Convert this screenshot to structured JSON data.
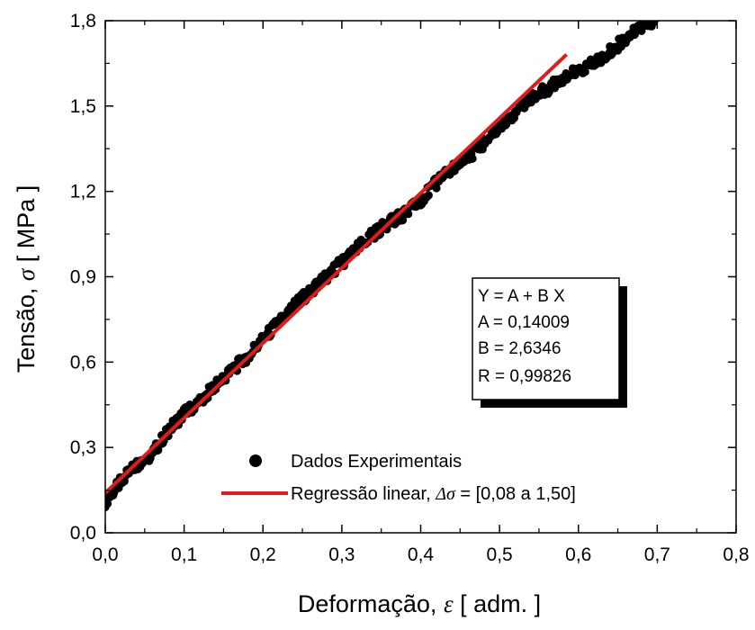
{
  "chart_data": {
    "type": "scatter",
    "xlabel_text": "Deformação, ",
    "xlabel_symbol": "ε",
    "xlabel_unit": " [ adm. ]",
    "ylabel_text": "Tensão, ",
    "ylabel_symbol": "σ",
    "ylabel_unit": " [ MPa ]",
    "xlim": [
      0.0,
      0.8
    ],
    "ylim": [
      0.0,
      1.8
    ],
    "x_ticks": [
      0.0,
      0.1,
      0.2,
      0.3,
      0.4,
      0.5,
      0.6,
      0.7,
      0.8
    ],
    "x_tick_labels": [
      "0,0",
      "0,1",
      "0,2",
      "0,3",
      "0,4",
      "0,5",
      "0,6",
      "0,7",
      "0,8"
    ],
    "y_ticks": [
      0.0,
      0.3,
      0.6,
      0.9,
      1.2,
      1.5,
      1.8
    ],
    "y_tick_labels": [
      "0,0",
      "0,3",
      "0,6",
      "0,9",
      "1,2",
      "1,5",
      "1,8"
    ],
    "series": [
      {
        "name": "Dados Experimentais",
        "kind": "scatter",
        "color": "#000000",
        "x": [
          0.0,
          0.02,
          0.04,
          0.06,
          0.08,
          0.1,
          0.12,
          0.14,
          0.16,
          0.18,
          0.2,
          0.22,
          0.24,
          0.26,
          0.28,
          0.3,
          0.32,
          0.34,
          0.36,
          0.38,
          0.4,
          0.42,
          0.44,
          0.46,
          0.48,
          0.5,
          0.52,
          0.54,
          0.56,
          0.58,
          0.6,
          0.62,
          0.64,
          0.66,
          0.68,
          0.7
        ],
        "y": [
          0.11,
          0.18,
          0.24,
          0.28,
          0.36,
          0.42,
          0.46,
          0.52,
          0.57,
          0.62,
          0.68,
          0.74,
          0.8,
          0.85,
          0.9,
          0.95,
          1.0,
          1.05,
          1.09,
          1.12,
          1.17,
          1.23,
          1.28,
          1.32,
          1.37,
          1.43,
          1.48,
          1.53,
          1.56,
          1.6,
          1.62,
          1.65,
          1.69,
          1.74,
          1.78,
          1.81
        ]
      },
      {
        "name": "Regressão linear, ",
        "name_symbol": "Δσ",
        "name_suffix": " = [0,08 a 1,50]",
        "kind": "line",
        "color": "#e11a1a",
        "x": [
          0.0,
          0.585
        ],
        "y": [
          0.14009,
          1.68133
        ]
      }
    ],
    "fit_box": {
      "lines": [
        "Y = A + B  X",
        "A = 0,14009",
        "B = 2,6346",
        "R = 0,99826"
      ]
    },
    "grid": false,
    "legend_position": "bottom-right"
  }
}
